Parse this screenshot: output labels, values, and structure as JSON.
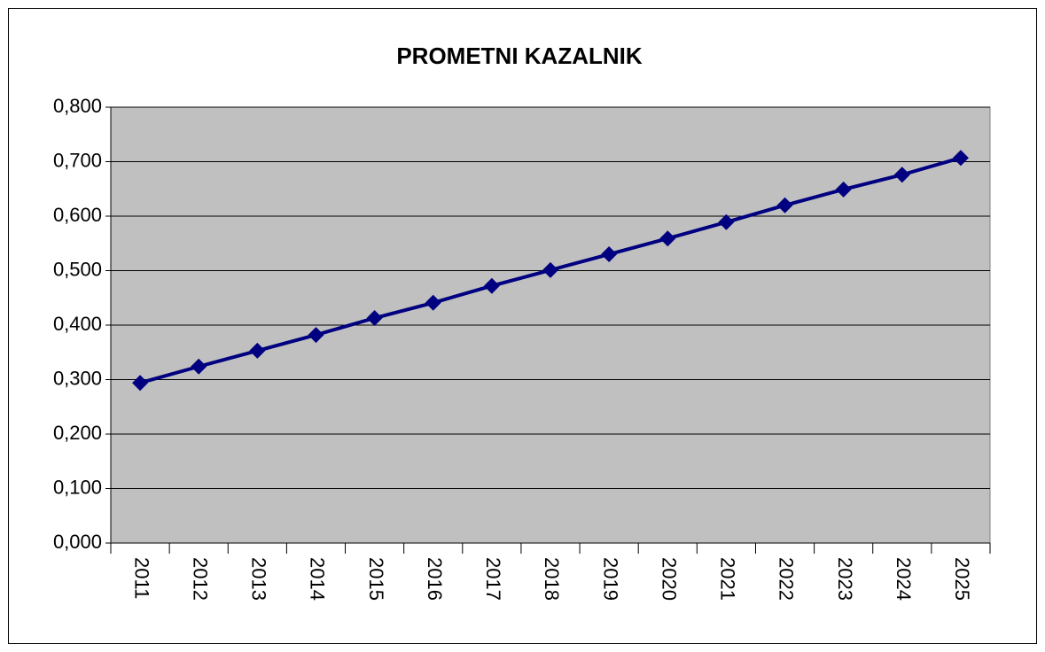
{
  "chart_data": {
    "type": "line",
    "title": "PROMETNI KAZALNIK",
    "categories": [
      "2011",
      "2012",
      "2013",
      "2014",
      "2015",
      "2016",
      "2017",
      "2018",
      "2019",
      "2020",
      "2021",
      "2022",
      "2023",
      "2024",
      "2025"
    ],
    "values": [
      0.294,
      0.324,
      0.353,
      0.382,
      0.413,
      0.441,
      0.472,
      0.501,
      0.53,
      0.559,
      0.589,
      0.62,
      0.649,
      0.676,
      0.707
    ],
    "color": "#000080",
    "ylim": [
      0,
      0.8
    ],
    "yticks": [
      {
        "value": 0,
        "label": "0,000"
      },
      {
        "value": 0.1,
        "label": "0,100"
      },
      {
        "value": 0.2,
        "label": "0,200"
      },
      {
        "value": 0.3,
        "label": "0,300"
      },
      {
        "value": 0.4,
        "label": "0,400"
      },
      {
        "value": 0.5,
        "label": "0,500"
      },
      {
        "value": 0.6,
        "label": "0,600"
      },
      {
        "value": 0.7,
        "label": "0,700"
      },
      {
        "value": 0.8,
        "label": "0,800"
      }
    ],
    "grid": true
  }
}
